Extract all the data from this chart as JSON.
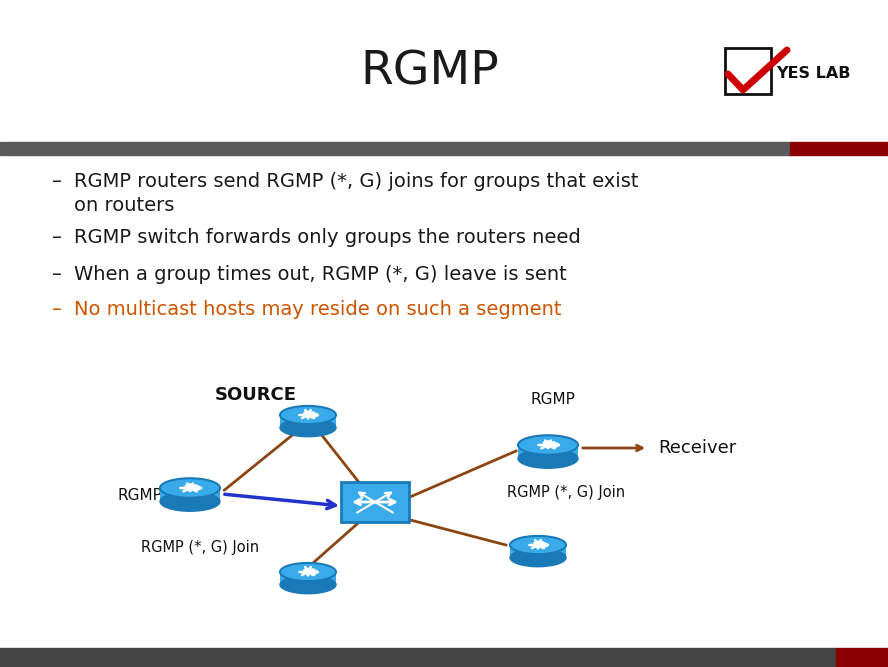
{
  "title": "RGMP",
  "title_fontsize": 34,
  "title_color": "#1a1a1a",
  "bg_color": "#ffffff",
  "header_bar_color1": "#5a5a5a",
  "header_bar_color2": "#8b0000",
  "bullet_texts": [
    "RGMP routers send RGMP (*, G) joins for groups that exist on routers",
    "RGMP switch forwards only groups the routers need",
    "When a group times out, RGMP (*, G) leave is sent",
    "No multicast hosts may reside on such a segment"
  ],
  "bullet_colors": [
    "#1a1a1a",
    "#1a1a1a",
    "#1a1a1a",
    "#cc5500"
  ],
  "router_face": "#3aabea",
  "router_edge": "#1a7ab8",
  "router_shadow": "#1a6aa8",
  "switch_face": "#3aabea",
  "switch_edge": "#1a7ab8",
  "arrow_blue": "#2233cc",
  "arrow_brown": "#8b4513",
  "source_label": "SOURCE",
  "receiver_label": "Receiver",
  "figw": 8.88,
  "figh": 6.67,
  "dpi": 100
}
